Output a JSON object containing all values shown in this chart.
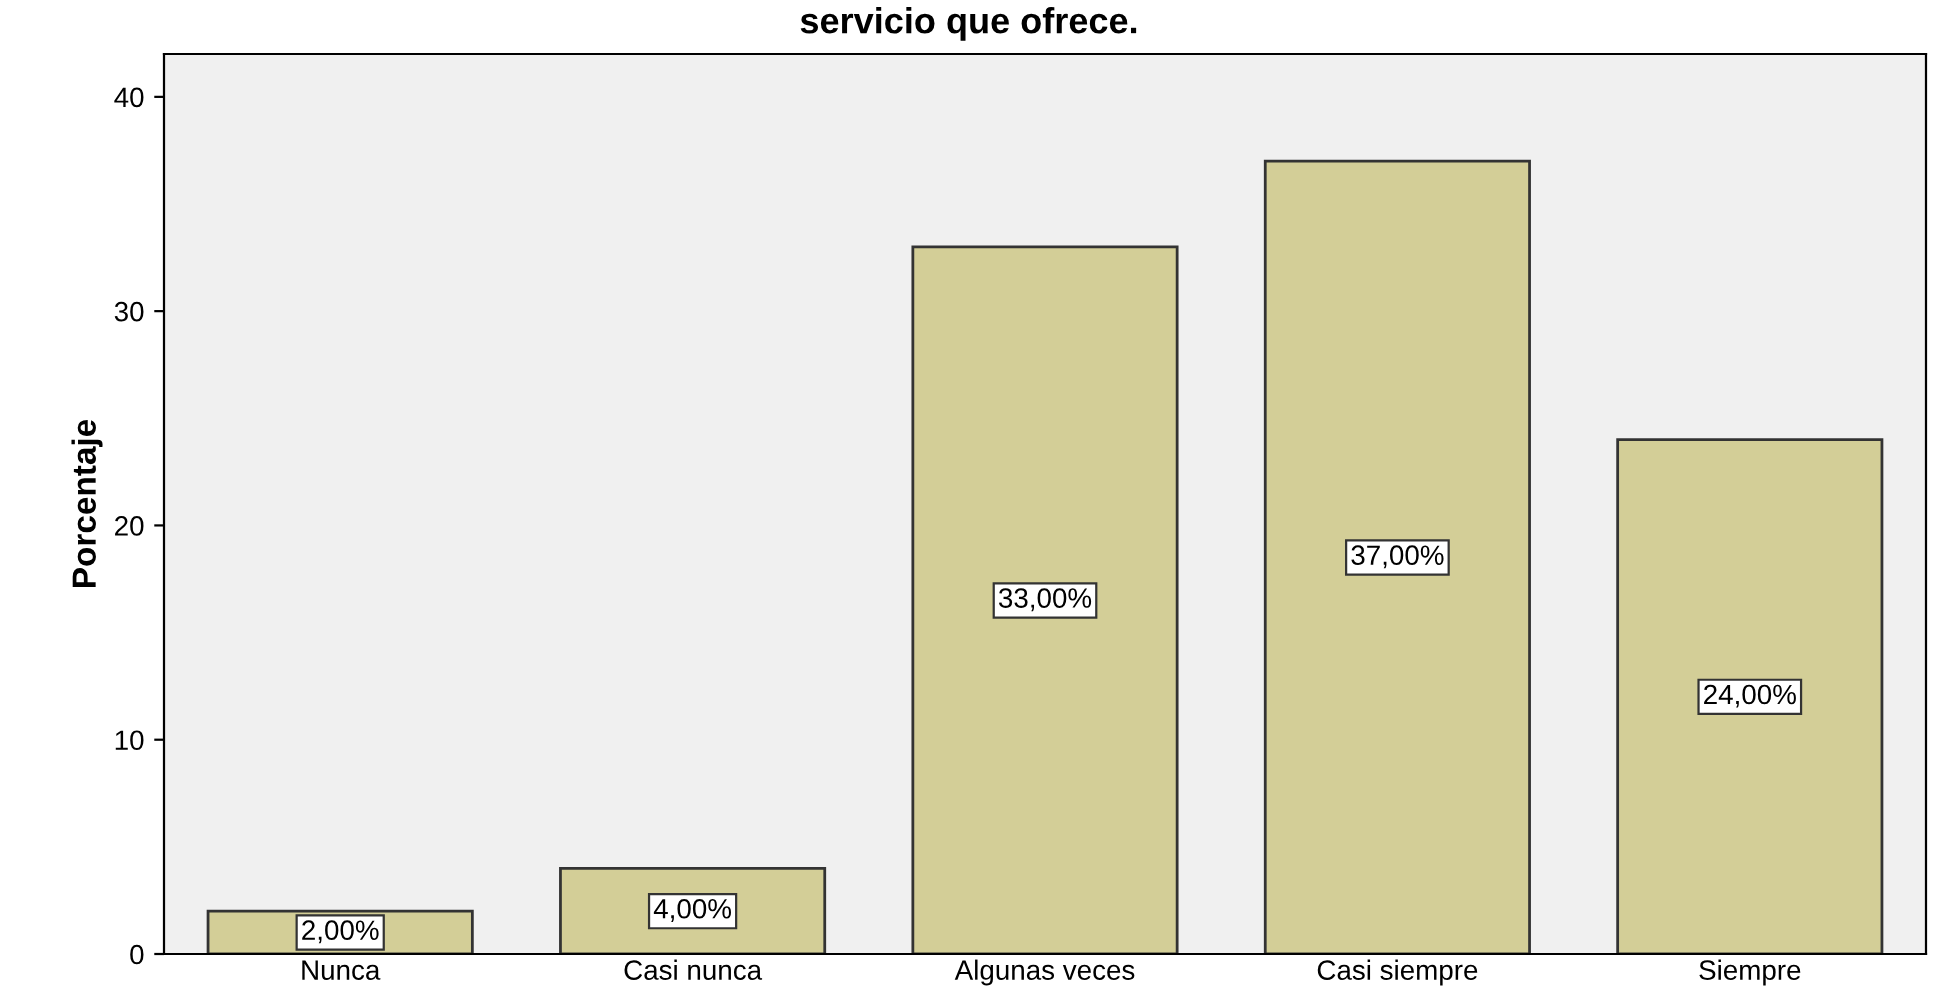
{
  "chart_data": {
    "type": "bar",
    "title": "servicio que ofrece.",
    "ylabel": "Porcentaje",
    "categories": [
      "Nunca",
      "Casi nunca",
      "Algunas veces",
      "Casi siempre",
      "Siempre"
    ],
    "values": [
      2,
      4,
      33,
      37,
      24
    ],
    "value_labels": [
      "2,00%",
      "4,00%",
      "33,00%",
      "37,00%",
      "24,00%"
    ],
    "color": "#d3ce97",
    "ylim": [
      0,
      42
    ],
    "yticks": [
      0,
      10,
      20,
      30,
      40
    ],
    "grid": false,
    "legend": false
  }
}
